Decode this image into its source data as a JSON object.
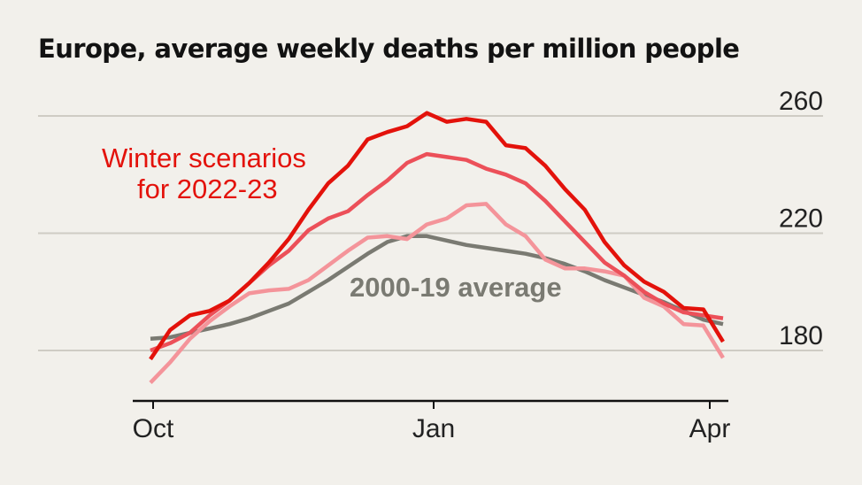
{
  "title": "Europe, average weekly deaths per million people",
  "chart_data": {
    "type": "line",
    "ylim": [
      170,
      265
    ],
    "yticks": [
      180,
      220,
      260
    ],
    "xticks": [
      "Oct",
      "Jan",
      "Apr"
    ],
    "grid": true,
    "annotations": {
      "scenarios_line1": "Winter scenarios",
      "scenarios_line2": "for 2022-23",
      "average": "2000-19 average"
    },
    "series": [
      {
        "color": "#7a7a72",
        "values": [
          184,
          184.5,
          186,
          187.5,
          189,
          191,
          193.5,
          196,
          200,
          204,
          208.5,
          213,
          217,
          219,
          219,
          217.5,
          216,
          215,
          214,
          213,
          211.5,
          209.5,
          207,
          204,
          201.5,
          199,
          196.5,
          193.5,
          190.5,
          189
        ]
      },
      {
        "color": "#e3120b",
        "values": [
          177,
          187,
          192,
          193.5,
          197,
          203,
          210,
          218,
          228,
          237,
          243,
          252,
          254.5,
          256.5,
          261,
          258,
          259,
          258,
          250,
          249,
          243,
          235,
          228,
          217,
          209,
          203.5,
          200,
          194.5,
          194,
          183
        ]
      },
      {
        "color": "#ec5059",
        "values": [
          180,
          182.5,
          186,
          192,
          197,
          203,
          209,
          214,
          221,
          225,
          227.5,
          233,
          238,
          244,
          247,
          246,
          245,
          242,
          240,
          237,
          231,
          224,
          217,
          210,
          205.5,
          200,
          196,
          193,
          192,
          191
        ]
      },
      {
        "color": "#f4949a",
        "values": [
          169,
          176,
          184,
          190,
          195,
          199.5,
          200.5,
          201,
          204,
          209,
          214,
          218.5,
          219,
          218,
          223,
          225,
          229.5,
          230,
          223,
          219,
          211,
          208,
          208,
          207,
          205.5,
          198,
          195,
          189,
          188.5,
          177.5
        ]
      }
    ]
  }
}
